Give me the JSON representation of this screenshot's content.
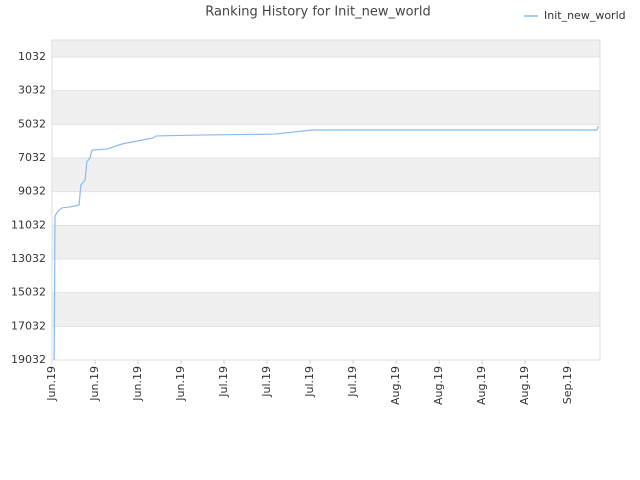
{
  "chart_data": {
    "type": "line",
    "title": "Ranking History for Init_new_world",
    "x": [
      0.05,
      0.07,
      0.14,
      0.23,
      0.42,
      0.63,
      0.67,
      0.77,
      0.81,
      0.88,
      0.93,
      1.28,
      1.63,
      1.86,
      2.35,
      2.42,
      3.44,
      5.19,
      6.05,
      12.67,
      12.7
    ],
    "series": [
      {
        "name": "Init_new_world",
        "color": "#88bbee",
        "values": [
          19032,
          10480,
          10180,
          10000,
          9940,
          9830,
          8640,
          8340,
          7270,
          7030,
          6560,
          6500,
          6200,
          6080,
          5840,
          5720,
          5670,
          5610,
          5370,
          5370,
          5130
        ]
      }
    ],
    "xlim": [
      0,
      12.74
    ],
    "xticks": [
      {
        "value": 0,
        "label": "Jun.19"
      },
      {
        "value": 1,
        "label": "Jun.19"
      },
      {
        "value": 2,
        "label": "Jun.19"
      },
      {
        "value": 3,
        "label": "Jun.19"
      },
      {
        "value": 4,
        "label": "Jul.19"
      },
      {
        "value": 5,
        "label": "Jul.19"
      },
      {
        "value": 6,
        "label": "Jul.19"
      },
      {
        "value": 7,
        "label": "Jul.19"
      },
      {
        "value": 8,
        "label": "Aug.19"
      },
      {
        "value": 9,
        "label": "Aug.19"
      },
      {
        "value": 10,
        "label": "Aug.19"
      },
      {
        "value": 11,
        "label": "Aug.19"
      },
      {
        "value": 12,
        "label": "Sep.19"
      }
    ],
    "ylim": [
      19032,
      22
    ],
    "yticks": [
      1032,
      3032,
      5032,
      7032,
      9032,
      11032,
      13032,
      15032,
      17032,
      19032
    ],
    "grid": true,
    "legend": "top-right"
  }
}
